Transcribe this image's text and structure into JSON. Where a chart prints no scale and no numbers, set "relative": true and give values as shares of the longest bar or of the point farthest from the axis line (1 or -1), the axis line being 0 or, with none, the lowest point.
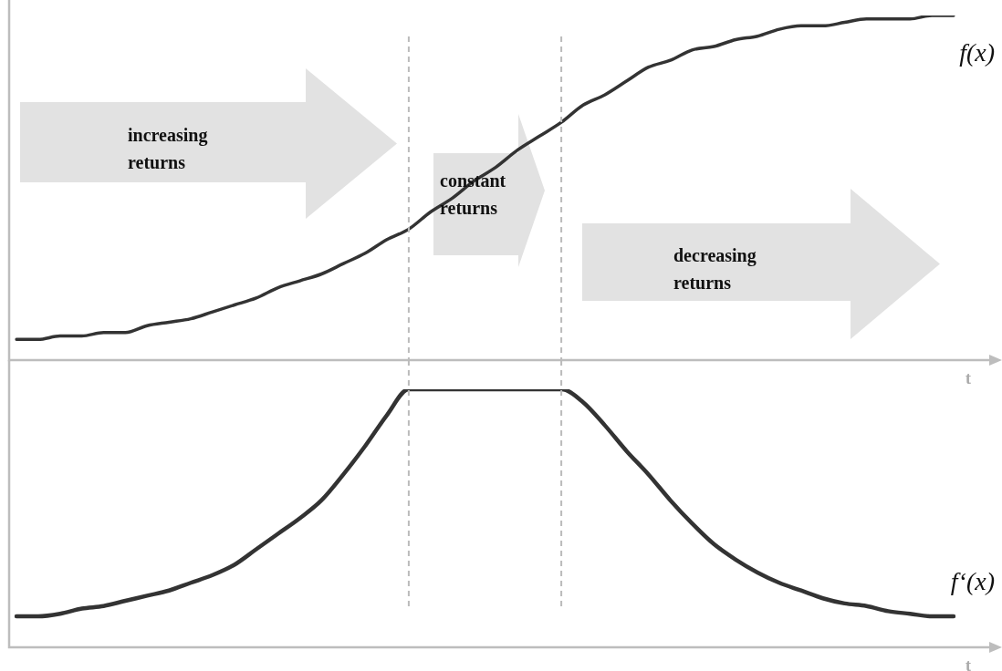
{
  "chart_data": [
    {
      "type": "line",
      "relative": true,
      "xlabel": "t",
      "categories": [
        null,
        null,
        null,
        null,
        null,
        null,
        null,
        null,
        null,
        null,
        null,
        null,
        null,
        null,
        null,
        null,
        null,
        null,
        null,
        null,
        null,
        null,
        null,
        null,
        null,
        null,
        null,
        null,
        null,
        null,
        null,
        null,
        null,
        null,
        null,
        null,
        null,
        null,
        null,
        null,
        null,
        null,
        null,
        null
      ],
      "series": [
        {
          "name": "f(x)",
          "color": "#333333",
          "values": [
            0.06,
            0.06,
            0.07,
            0.07,
            0.08,
            0.08,
            0.1,
            0.11,
            0.12,
            0.14,
            0.16,
            0.18,
            0.21,
            0.23,
            0.25,
            0.28,
            0.31,
            0.35,
            0.38,
            0.43,
            0.47,
            0.52,
            0.56,
            0.61,
            0.65,
            0.69,
            0.74,
            0.77,
            0.81,
            0.85,
            0.87,
            0.9,
            0.91,
            0.93,
            0.94,
            0.96,
            0.97,
            0.97,
            0.98,
            0.99,
            0.99,
            0.99,
            1.0,
            1.0
          ]
        }
      ],
      "annotations": [
        "increasing returns",
        "constant returns",
        "decreasing returns"
      ],
      "grid": false,
      "legend": false,
      "marker": "none",
      "line_style": "solid"
    },
    {
      "type": "line",
      "relative": true,
      "xlabel": "t",
      "categories": [
        null,
        null,
        null,
        null,
        null,
        null,
        null,
        null,
        null,
        null,
        null,
        null,
        null,
        null,
        null,
        null,
        null,
        null,
        null,
        null,
        null,
        null,
        null,
        null,
        null,
        null,
        null,
        null,
        null,
        null,
        null,
        null,
        null,
        null,
        null,
        null,
        null,
        null,
        null,
        null,
        null,
        null,
        null,
        null
      ],
      "series": [
        {
          "name": "f‘(x)",
          "color": "#333333",
          "values": [
            0.12,
            0.12,
            0.13,
            0.15,
            0.16,
            0.18,
            0.2,
            0.22,
            0.25,
            0.28,
            0.32,
            0.38,
            0.44,
            0.5,
            0.57,
            0.67,
            0.78,
            0.9,
            1,
            1,
            1,
            1,
            1,
            1,
            1,
            1,
            0.95,
            0.86,
            0.76,
            0.67,
            0.57,
            0.48,
            0.4,
            0.34,
            0.29,
            0.25,
            0.22,
            0.19,
            0.17,
            0.16,
            0.14,
            0.13,
            0.12,
            0.12
          ]
        }
      ],
      "grid": false,
      "legend": false,
      "marker": "none",
      "line_style": "solid"
    }
  ]
}
